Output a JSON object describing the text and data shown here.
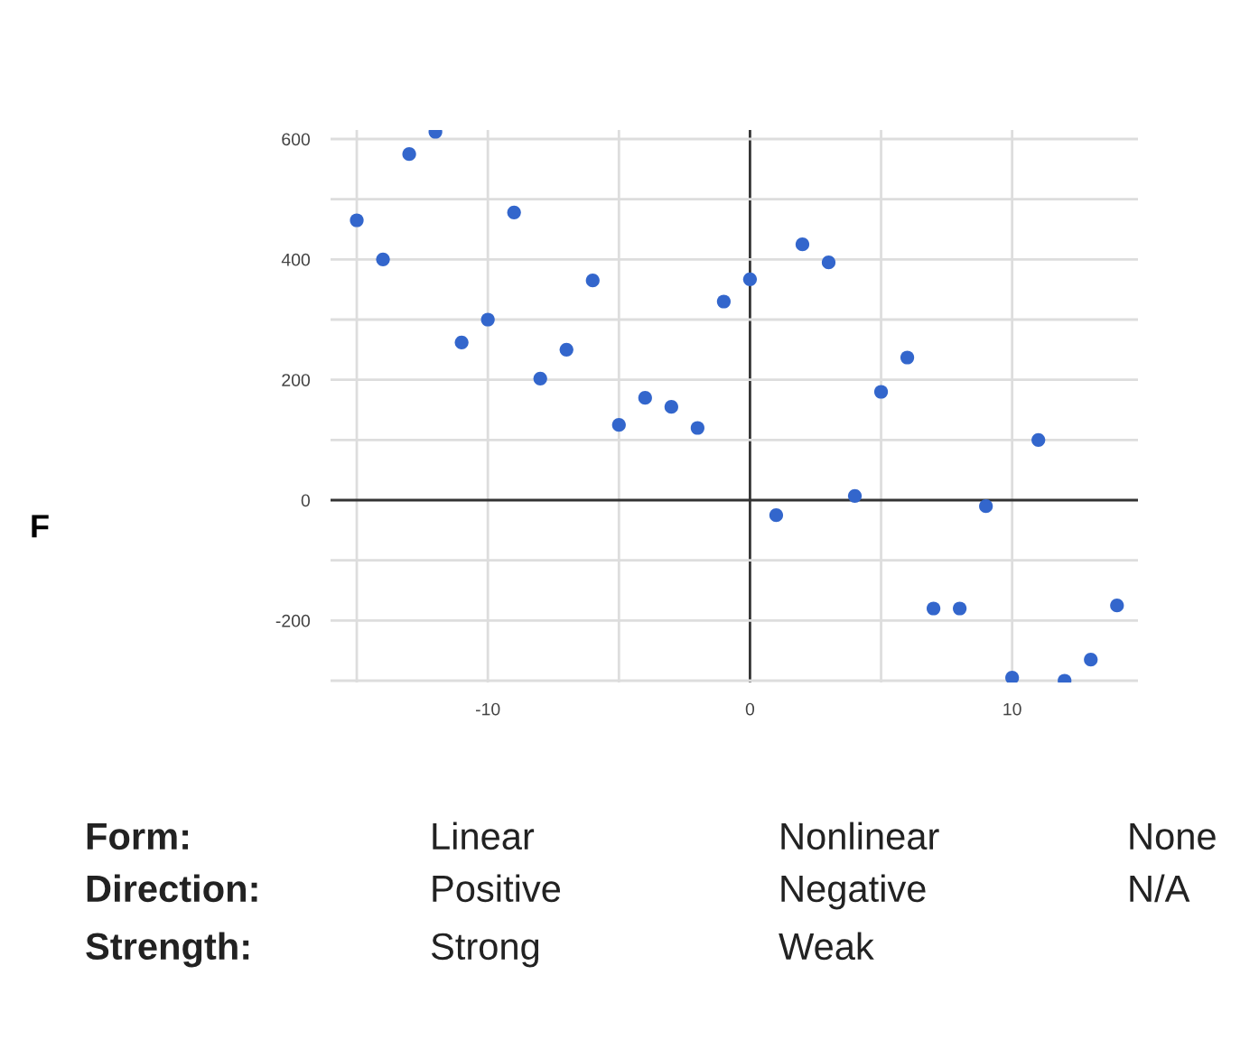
{
  "chart_data": {
    "type": "scatter",
    "x": [
      -15,
      -14,
      -13,
      -12,
      -11,
      -10,
      -9,
      -8,
      -7,
      -6,
      -5,
      -4,
      -3,
      -2,
      -1,
      0,
      1,
      2,
      3,
      4,
      5,
      6,
      7,
      8,
      9,
      10,
      11,
      12,
      13,
      14
    ],
    "values": [
      465,
      400,
      575,
      612,
      262,
      300,
      478,
      202,
      250,
      365,
      125,
      170,
      155,
      120,
      330,
      367,
      -25,
      425,
      395,
      7,
      180,
      237,
      -180,
      -180,
      -10,
      -295,
      100,
      -300,
      -265,
      -175
    ],
    "color": "#3366cc",
    "marker": "circle",
    "xlim": [
      -16,
      14.8
    ],
    "ylim": [
      -303,
      615
    ],
    "xticks": [
      {
        "value": -15,
        "label": null
      },
      -10,
      {
        "value": -5,
        "label": null
      },
      0,
      {
        "value": 5,
        "label": null
      },
      10
    ],
    "yticks": [
      {
        "value": -300,
        "label": null
      },
      -200,
      {
        "value": -100,
        "label": null
      },
      0,
      {
        "value": 100,
        "label": null
      },
      200,
      {
        "value": 300,
        "label": null
      },
      400,
      {
        "value": 500,
        "label": null
      },
      600
    ],
    "grid": true,
    "annotations": [
      "F",
      "Form:",
      "Linear",
      "Nonlinear",
      "None",
      "Direction:",
      "Positive",
      "Negative",
      "N/A",
      "Strength:",
      "Strong",
      "Weak"
    ]
  }
}
